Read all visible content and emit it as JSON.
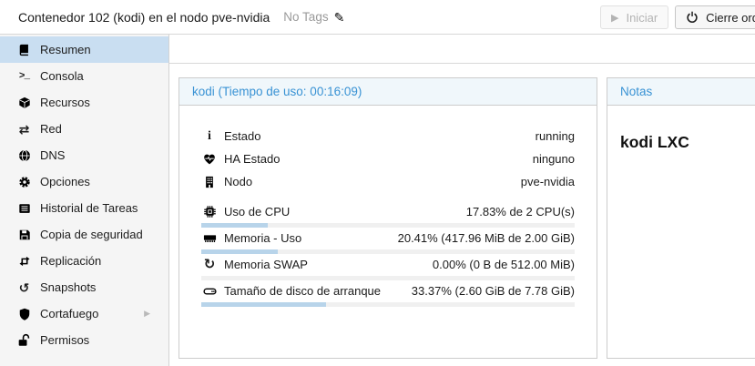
{
  "topbar": {
    "title": "Contenedor 102 (kodi) en el nodo pve-nvidia",
    "tags_label": "No Tags",
    "tags_edit_icon": "pencil-icon",
    "buttons": {
      "start": "Iniciar",
      "start_icon": "play-icon",
      "start_disabled": true,
      "shutdown": "Cierre ordenado",
      "shutdown_icon": "power-icon"
    }
  },
  "sidebar": {
    "items": [
      {
        "label": "Resumen",
        "icon": "book-icon",
        "selected": true
      },
      {
        "label": "Consola",
        "icon": "terminal-icon",
        "selected": false
      },
      {
        "label": "Recursos",
        "icon": "cube-icon",
        "selected": false
      },
      {
        "label": "Red",
        "icon": "network-icon",
        "selected": false
      },
      {
        "label": "DNS",
        "icon": "globe-icon",
        "selected": false
      },
      {
        "label": "Opciones",
        "icon": "gear-icon",
        "selected": false
      },
      {
        "label": "Historial de Tareas",
        "icon": "task-list-icon",
        "selected": false
      },
      {
        "label": "Copia de seguridad",
        "icon": "floppy-icon",
        "selected": false
      },
      {
        "label": "Replicación",
        "icon": "retweet-icon",
        "selected": false
      },
      {
        "label": "Snapshots",
        "icon": "history-icon",
        "selected": false
      },
      {
        "label": "Cortafuego",
        "icon": "shield-icon",
        "selected": false,
        "has_submenu": true
      },
      {
        "label": "Permisos",
        "icon": "unlock-icon",
        "selected": false
      }
    ]
  },
  "status_panel": {
    "title": "kodi (Tiempo de uso: 00:16:09)",
    "rows": [
      {
        "label": "Estado",
        "value": "running",
        "icon": "info-icon"
      },
      {
        "label": "HA Estado",
        "value": "ninguno",
        "icon": "heartbeat-icon"
      },
      {
        "label": "Nodo",
        "value": "pve-nvidia",
        "icon": "building-icon"
      },
      {
        "label": "Uso de CPU",
        "value": "17.83% de 2 CPU(s)",
        "icon": "cpu-icon",
        "percent": 17.83
      },
      {
        "label": "Memoria - Uso",
        "value": "20.41% (417.96 MiB de 2.00 GiB)",
        "icon": "memory-icon",
        "percent": 20.41
      },
      {
        "label": "Memoria SWAP",
        "value": "0.00% (0 B de 512.00 MiB)",
        "icon": "swap-refresh-icon",
        "percent": 0
      },
      {
        "label": "Tamaño de disco de arranque",
        "value": "33.37% (2.60 GiB de 7.78 GiB)",
        "icon": "disk-icon",
        "percent": 33.37
      }
    ]
  },
  "notes_panel": {
    "title": "Notas",
    "content": "kodi LXC"
  },
  "colors": {
    "accent_blue": "#3892d4",
    "selected_bg": "#c9def1",
    "progress_fill": "#b8d4ea",
    "header_bg": "#f0f7fb",
    "sidebar_bg": "#f5f5f5"
  }
}
